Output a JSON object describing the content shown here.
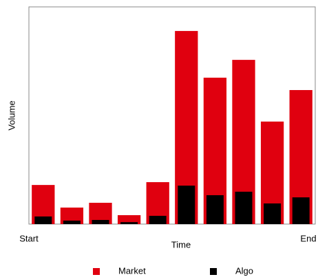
{
  "chart_data": {
    "type": "bar",
    "x_label": "Time",
    "y_label": "Volume",
    "categories": [
      "Start",
      null,
      null,
      null,
      null,
      null,
      null,
      null,
      null,
      "End"
    ],
    "series": [
      {
        "name": "Market",
        "color": "#e0000f",
        "values": [
          18,
          7.6,
          9.8,
          4.1,
          19.3,
          88.9,
          67.4,
          75.6,
          47.2,
          61.7
        ]
      },
      {
        "name": "Algo",
        "color": "#000000",
        "values": [
          3.5,
          1.6,
          1.9,
          0.9,
          3.8,
          17.7,
          13.3,
          14.9,
          9.5,
          12.3
        ]
      }
    ],
    "ylim": [
      0,
      100
    ]
  }
}
